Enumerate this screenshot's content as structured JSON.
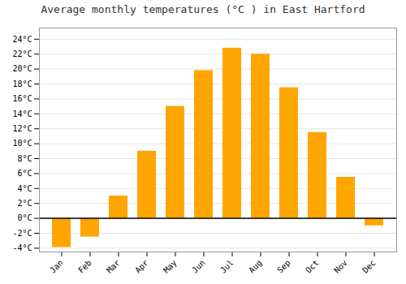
{
  "chart_data": {
    "type": "bar",
    "title": "Average monthly temperatures (°C ) in East Hartford",
    "categories": [
      "Jan",
      "Feb",
      "Mar",
      "Apr",
      "May",
      "Jun",
      "Jul",
      "Aug",
      "Sep",
      "Oct",
      "Nov",
      "Dec"
    ],
    "values": [
      -3.9,
      -2.5,
      3.0,
      9.0,
      15.0,
      19.8,
      22.8,
      22.0,
      17.5,
      11.5,
      5.5,
      -1.0
    ],
    "color": "#FFA500",
    "ylim": [
      -4.5,
      25.5
    ],
    "yticks": [
      {
        "value": -4,
        "label": "-4°C"
      },
      {
        "value": -2,
        "label": "-2°C"
      },
      {
        "value": 0,
        "label": "0°C"
      },
      {
        "value": 2,
        "label": "2°C"
      },
      {
        "value": 4,
        "label": "4°C"
      },
      {
        "value": 6,
        "label": "6°C"
      },
      {
        "value": 8,
        "label": "8°C"
      },
      {
        "value": 10,
        "label": "10°C"
      },
      {
        "value": 12,
        "label": "12°C"
      },
      {
        "value": 14,
        "label": "14°C"
      },
      {
        "value": 16,
        "label": "16°C"
      },
      {
        "value": 18,
        "label": "18°C"
      },
      {
        "value": 20,
        "label": "20°C"
      },
      {
        "value": 22,
        "label": "22°C"
      },
      {
        "value": 24,
        "label": "24°C"
      }
    ],
    "grid": true
  }
}
